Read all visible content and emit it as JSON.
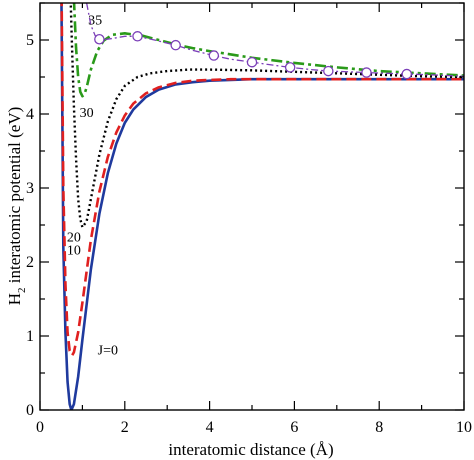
{
  "chart_data": {
    "type": "line",
    "xlabel": "interatomic distance (Å)",
    "ylabel_main": "H",
    "ylabel_sub": "2",
    "ylabel_rest": " interatomic potential (eV)",
    "xlim": [
      0,
      10
    ],
    "ylim": [
      0,
      5.5
    ],
    "xticks": [
      0,
      2,
      4,
      6,
      8,
      10
    ],
    "yticks": [
      0,
      1,
      2,
      3,
      4,
      5
    ],
    "grid": false,
    "legend": "none",
    "series": [
      {
        "name": "J=0",
        "color": "#1f3a9e",
        "dash": "solid",
        "marker": "none",
        "x": [
          0.5,
          0.55,
          0.6,
          0.65,
          0.7,
          0.74,
          0.8,
          0.9,
          1.0,
          1.2,
          1.4,
          1.6,
          1.8,
          2.0,
          2.2,
          2.5,
          2.8,
          3.2,
          3.6,
          4.0,
          4.5,
          5.0,
          6.0,
          7.0,
          8.0,
          9.0,
          10.0
        ],
        "y": [
          6.0,
          2.2,
          1.05,
          0.38,
          0.08,
          0.0,
          0.08,
          0.45,
          0.95,
          1.9,
          2.65,
          3.2,
          3.6,
          3.88,
          4.06,
          4.23,
          4.33,
          4.4,
          4.43,
          4.45,
          4.46,
          4.47,
          4.47,
          4.47,
          4.47,
          4.47,
          4.47
        ]
      },
      {
        "name": "10",
        "color": "#e02020",
        "dash": "dashed",
        "marker": "none",
        "x": [
          0.5,
          0.55,
          0.6,
          0.65,
          0.7,
          0.76,
          0.8,
          0.9,
          1.0,
          1.2,
          1.4,
          1.6,
          1.8,
          2.0,
          2.2,
          2.5,
          2.8,
          3.2,
          3.6,
          4.0,
          4.5,
          5.0,
          6.0,
          7.0,
          8.0,
          9.0,
          10.0
        ],
        "y": [
          6.2,
          3.0,
          1.7,
          1.05,
          0.8,
          0.74,
          0.78,
          1.05,
          1.45,
          2.3,
          2.95,
          3.42,
          3.75,
          3.98,
          4.14,
          4.28,
          4.36,
          4.42,
          4.45,
          4.46,
          4.47,
          4.47,
          4.47,
          4.47,
          4.47,
          4.47,
          4.47
        ]
      },
      {
        "name": "20",
        "color": "#000000",
        "dash": "dotted",
        "marker": "none",
        "x": [
          0.72,
          0.75,
          0.8,
          0.85,
          0.9,
          0.95,
          1.0,
          1.1,
          1.2,
          1.4,
          1.6,
          1.8,
          2.0,
          2.3,
          2.6,
          3.0,
          3.5,
          4.0,
          5.0,
          6.0,
          7.0,
          8.0,
          9.0,
          10.0
        ],
        "y": [
          5.6,
          5.0,
          4.1,
          3.4,
          2.85,
          2.58,
          2.47,
          2.55,
          2.85,
          3.45,
          3.9,
          4.2,
          4.38,
          4.5,
          4.55,
          4.58,
          4.6,
          4.6,
          4.59,
          4.57,
          4.55,
          4.53,
          4.51,
          4.5
        ]
      },
      {
        "name": "30",
        "color": "#2a9a1a",
        "dash": "dashdot",
        "marker": "none",
        "x": [
          0.8,
          0.85,
          0.9,
          0.95,
          1.0,
          1.05,
          1.1,
          1.2,
          1.35,
          1.5,
          1.7,
          2.0,
          2.4,
          2.8,
          3.2,
          3.6,
          4.0,
          5.0,
          6.0,
          7.0,
          8.0,
          9.0,
          10.0
        ],
        "y": [
          5.55,
          4.9,
          4.5,
          4.3,
          4.24,
          4.27,
          4.36,
          4.6,
          4.85,
          4.99,
          5.07,
          5.09,
          5.06,
          5.0,
          4.94,
          4.89,
          4.85,
          4.76,
          4.69,
          4.63,
          4.58,
          4.55,
          4.52
        ]
      },
      {
        "name": "35",
        "color": "#7b3fb8",
        "dash": "dashdot-thin",
        "marker": "open-circle",
        "x": [
          1.1,
          1.2,
          1.3,
          1.45,
          1.7,
          2.0,
          2.3,
          2.7,
          3.2,
          3.6,
          4.1,
          4.5,
          5.0,
          5.5,
          5.9,
          6.4,
          6.8,
          7.3,
          7.7,
          8.2,
          8.65,
          9.2,
          10.0
        ],
        "y": [
          5.5,
          5.2,
          5.06,
          5.0,
          5.02,
          5.05,
          5.05,
          5.0,
          4.93,
          4.86,
          4.79,
          4.74,
          4.7,
          4.66,
          4.63,
          4.6,
          4.58,
          4.57,
          4.56,
          4.55,
          4.54,
          4.53,
          4.51
        ],
        "marker_x": [
          1.4,
          2.3,
          3.2,
          4.1,
          5.0,
          5.9,
          6.8,
          7.7,
          8.65
        ],
        "marker_y": [
          5.01,
          5.05,
          4.93,
          4.79,
          4.7,
          4.63,
          4.58,
          4.56,
          4.54
        ]
      }
    ],
    "annotations": [
      {
        "text": "J=0",
        "x": 1.6,
        "y": 0.75
      },
      {
        "text": "10",
        "x": 0.8,
        "y": 2.1
      },
      {
        "text": "20",
        "x": 0.8,
        "y": 2.28
      },
      {
        "text": "30",
        "x": 1.1,
        "y": 3.96
      },
      {
        "text": "35",
        "x": 1.3,
        "y": 5.21
      }
    ]
  }
}
